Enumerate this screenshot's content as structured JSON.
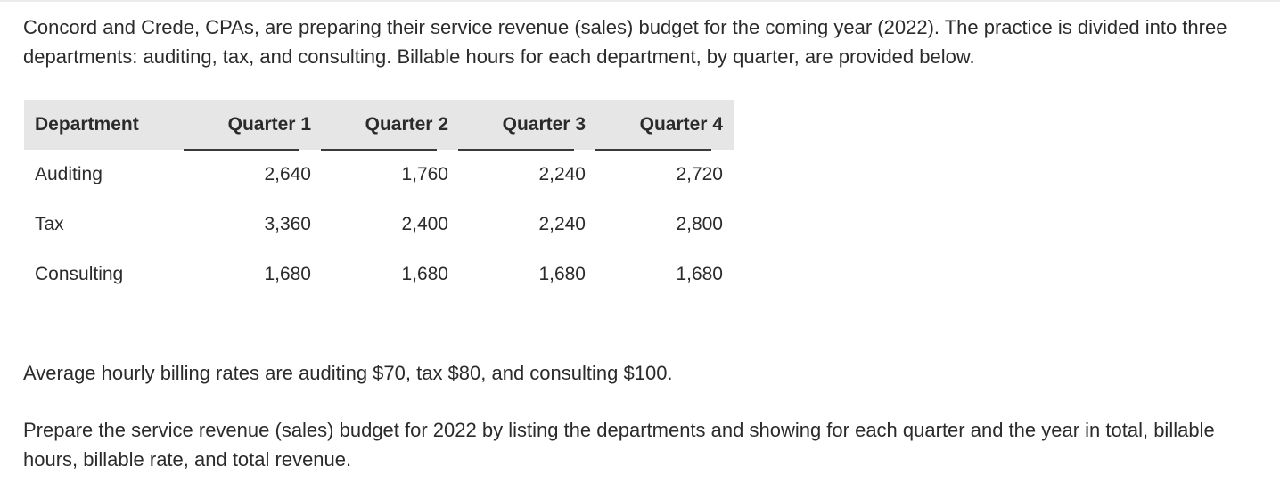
{
  "intro": "Concord and Crede, CPAs, are preparing their service revenue (sales) budget for the coming year (2022). The practice is divided into three departments: auditing, tax, and consulting. Billable hours for each department, by quarter, are provided below.",
  "table": {
    "headers": [
      "Department",
      "Quarter 1",
      "Quarter 2",
      "Quarter 3",
      "Quarter 4"
    ],
    "rows": [
      {
        "department": "Auditing",
        "values": [
          "2,640",
          "1,760",
          "2,240",
          "2,720"
        ]
      },
      {
        "department": "Tax",
        "values": [
          "3,360",
          "2,400",
          "2,240",
          "2,800"
        ]
      },
      {
        "department": "Consulting",
        "values": [
          "1,680",
          "1,680",
          "1,680",
          "1,680"
        ]
      }
    ]
  },
  "rates_text": "Average hourly billing rates are auditing $70, tax $80, and consulting $100.",
  "task_text": "Prepare the service revenue (sales) budget for 2022 by listing the departments and showing for each quarter and the year in total, billable hours, billable rate, and total revenue."
}
